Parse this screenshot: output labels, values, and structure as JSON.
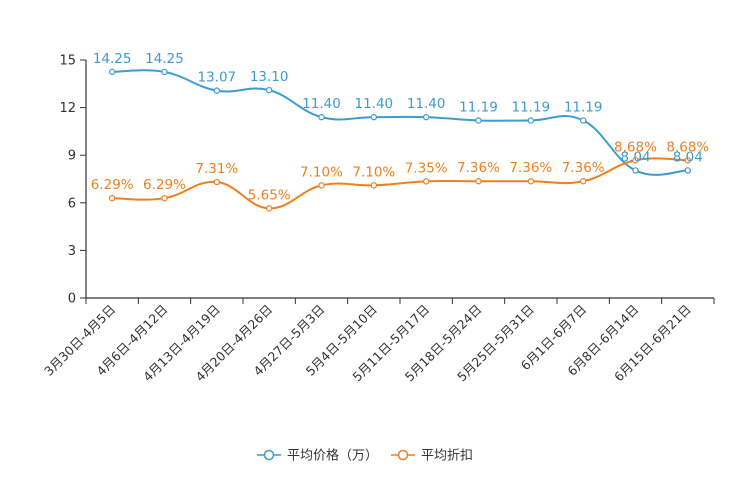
{
  "chart_data": {
    "type": "line",
    "title": "",
    "xlabel": "",
    "ylabel": "",
    "ylim": [
      0,
      15
    ],
    "yticks": [
      0,
      3,
      6,
      9,
      12,
      15
    ],
    "grid": false,
    "legend_position": "bottom-center",
    "categories": [
      "3月30日-4月5日",
      "4月6日-4月12日",
      "4月13日-4月19日",
      "4月20日-4月26日",
      "4月27日-5月3日",
      "5月4日-5月10日",
      "5月11日-5月17日",
      "5月18日-5月24日",
      "5月25日-5月31日",
      "6月1日-6月7日",
      "6月8日-6月14日",
      "6月15日-6月21日"
    ],
    "series": [
      {
        "name": "平均价格（万）",
        "color": "#3d9bd1",
        "values": [
          14.25,
          14.25,
          13.07,
          13.1,
          11.4,
          11.4,
          11.4,
          11.19,
          11.19,
          11.19,
          8.04,
          8.04
        ],
        "labels": [
          "14.25",
          "14.25",
          "13.07",
          "13.10",
          "11.40",
          "11.40",
          "11.40",
          "11.19",
          "11.19",
          "11.19",
          "8.04",
          "8.04"
        ]
      },
      {
        "name": "平均折扣",
        "color": "#f07f1e",
        "values": [
          6.29,
          6.29,
          7.31,
          5.65,
          7.1,
          7.1,
          7.35,
          7.36,
          7.36,
          7.36,
          8.68,
          8.68
        ],
        "labels": [
          "6.29%",
          "6.29%",
          "7.31%",
          "5.65%",
          "7.10%",
          "7.10%",
          "7.35%",
          "7.36%",
          "7.36%",
          "7.36%",
          "8.68%",
          "8.68%"
        ]
      }
    ]
  }
}
